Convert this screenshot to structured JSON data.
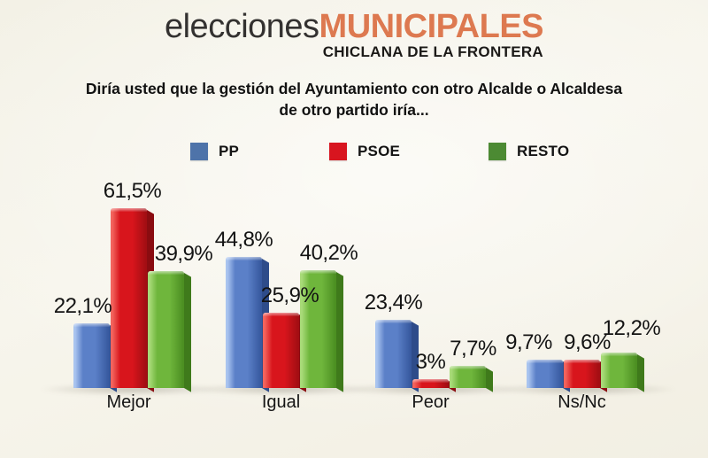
{
  "header": {
    "title_regular": "elecciones",
    "title_accent": "MUNICIPALES",
    "subtitle": "CHICLANA DE LA FRONTERA",
    "accent_color": "#dd7950"
  },
  "question": {
    "line1": "Diría usted que la gestión del Ayuntamiento con otro Alcalde o Alcaldesa",
    "line2": "de otro partido iría..."
  },
  "chart_data": {
    "type": "bar",
    "title": "Diría usted que la gestión del Ayuntamiento con otro Alcalde o Alcaldesa de otro partido iría...",
    "categories": [
      "Mejor",
      "Igual",
      "Peor",
      "Ns/Nc"
    ],
    "series": [
      {
        "name": "PP",
        "values": [
          22.1,
          44.8,
          23.4,
          9.7
        ],
        "value_labels": [
          "22,1%",
          "44,8%",
          "23,4%",
          "9,7%"
        ],
        "legend_color": "#4e73a9",
        "bar_colors": {
          "light": "#a9c4ef",
          "main": "#5b80c8",
          "dark": "#37599f",
          "side": "#2e4c8a"
        }
      },
      {
        "name": "PSOE",
        "values": [
          61.5,
          25.9,
          3,
          9.6
        ],
        "value_labels": [
          "61,5%",
          "25,9%",
          "3%",
          "9,6%"
        ],
        "legend_color": "#d8151f",
        "bar_colors": {
          "light": "#f2635c",
          "main": "#d8151c",
          "dark": "#a30e13",
          "side": "#8a0c10"
        }
      },
      {
        "name": "RESTO",
        "values": [
          39.9,
          40.2,
          7.7,
          12.2
        ],
        "value_labels": [
          "39,9%",
          "40,2%",
          "7,7%",
          "12,2%"
        ],
        "legend_color": "#4c8a33",
        "bar_colors": {
          "light": "#a8da78",
          "main": "#6fb63c",
          "dark": "#4c8f22",
          "side": "#3f7a1b"
        }
      }
    ],
    "ylim": [
      0,
      70
    ],
    "grid": false,
    "legend_position": "top",
    "value_label_format": "percent with decimal comma"
  }
}
